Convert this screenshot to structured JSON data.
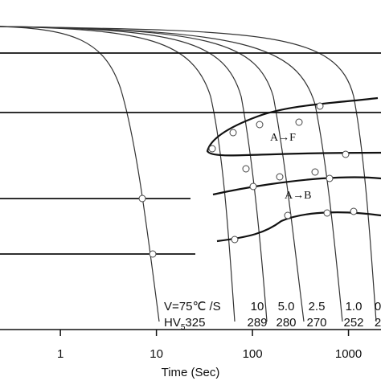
{
  "chart_data": {
    "type": "cct",
    "xlabel": "Time (Sec)",
    "xscale": "log",
    "xlim": [
      0.235,
      2180
    ],
    "xticks": [
      1,
      10,
      100,
      1000
    ],
    "annotations": {
      "rate": "V=75℃ /S",
      "hv": "HV",
      "hv_sub": "5",
      "hv_value": "325",
      "rates": [
        "10",
        "5.0",
        "2.5",
        "1.0",
        "0"
      ],
      "hardness": [
        "289",
        "280",
        "270",
        "252",
        "2"
      ],
      "ferrite": "A→F",
      "bainite": "A→B"
    }
  }
}
